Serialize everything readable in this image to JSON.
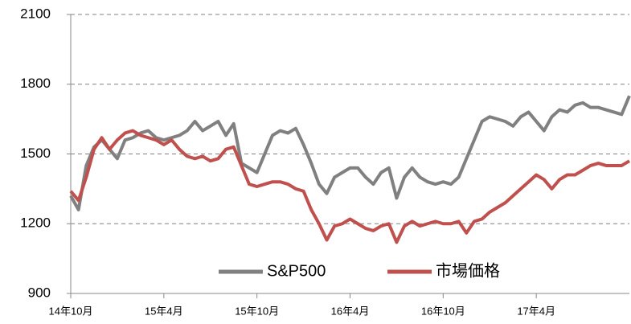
{
  "chart_data": {
    "type": "line",
    "categories": [
      "14年10月",
      null,
      null,
      null,
      null,
      null,
      null,
      null,
      null,
      null,
      null,
      null,
      "15年4月",
      null,
      null,
      null,
      null,
      null,
      null,
      null,
      null,
      null,
      null,
      null,
      "15年10月",
      null,
      null,
      null,
      null,
      null,
      null,
      null,
      null,
      null,
      null,
      null,
      "16年4月",
      null,
      null,
      null,
      null,
      null,
      null,
      null,
      null,
      null,
      null,
      null,
      "16年10月",
      null,
      null,
      null,
      null,
      null,
      null,
      null,
      null,
      null,
      null,
      null,
      "17年4月",
      null,
      null,
      null,
      null,
      null,
      null,
      null,
      null,
      null,
      null,
      null,
      null
    ],
    "series": [
      {
        "name": "S&P500",
        "color": "#808080",
        "values": [
          1320,
          1260,
          1450,
          1530,
          1560,
          1520,
          1480,
          1560,
          1570,
          1590,
          1600,
          1570,
          1560,
          1570,
          1580,
          1600,
          1640,
          1600,
          1620,
          1640,
          1580,
          1630,
          1460,
          1440,
          1420,
          1500,
          1580,
          1600,
          1590,
          1610,
          1540,
          1460,
          1370,
          1330,
          1400,
          1420,
          1440,
          1440,
          1400,
          1370,
          1420,
          1440,
          1310,
          1400,
          1440,
          1400,
          1380,
          1370,
          1380,
          1370,
          1400,
          1480,
          1560,
          1640,
          1660,
          1650,
          1640,
          1620,
          1660,
          1680,
          1640,
          1600,
          1660,
          1690,
          1680,
          1710,
          1720,
          1700,
          1700,
          1690,
          1680,
          1670,
          1750
        ]
      },
      {
        "name": "市場価格",
        "color": "#c0504d",
        "values": [
          1340,
          1300,
          1400,
          1520,
          1570,
          1520,
          1560,
          1590,
          1600,
          1580,
          1570,
          1560,
          1540,
          1560,
          1520,
          1490,
          1480,
          1490,
          1470,
          1480,
          1520,
          1530,
          1450,
          1370,
          1360,
          1370,
          1380,
          1380,
          1370,
          1350,
          1340,
          1260,
          1200,
          1130,
          1190,
          1200,
          1220,
          1200,
          1180,
          1170,
          1190,
          1200,
          1120,
          1190,
          1210,
          1190,
          1200,
          1210,
          1200,
          1200,
          1210,
          1160,
          1210,
          1220,
          1250,
          1270,
          1290,
          1320,
          1350,
          1380,
          1410,
          1390,
          1350,
          1390,
          1410,
          1410,
          1430,
          1450,
          1460,
          1450,
          1450,
          1450,
          1470
        ]
      }
    ],
    "ylim": [
      900,
      2100
    ],
    "yticks": [
      900,
      1200,
      1500,
      1800,
      2100
    ],
    "grid": true,
    "legend": "bottom"
  }
}
